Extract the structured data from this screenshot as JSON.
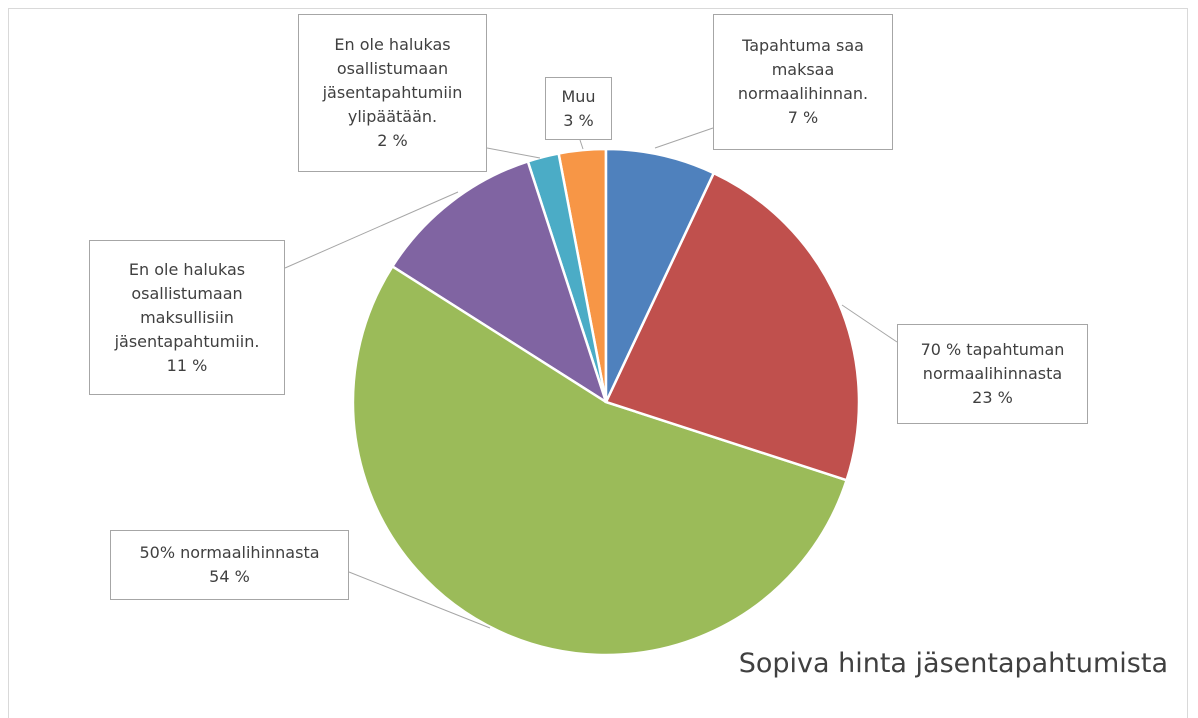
{
  "chart_data": {
    "type": "pie",
    "title": "Sopiva hinta jäsentapahtumista",
    "categories": [
      "Tapahtuma saa maksaa normaalihinnan.",
      "70 % tapahtuman normaalihinnasta",
      "50% normaalihinnasta",
      "En ole halukas osallistumaan maksullisiin jäsentapahtumiin.",
      "En ole halukas osallistumaan jäsentapahtumiin ylipäätään.",
      "Muu"
    ],
    "values": [
      7,
      23,
      54,
      11,
      2,
      3
    ],
    "value_labels": [
      "7 %",
      "23 %",
      "54 %",
      "11 %",
      "2 %",
      "3 %"
    ],
    "colors": [
      "#4f81bd",
      "#c0504d",
      "#9bbb59",
      "#8064a2",
      "#4bacc6",
      "#f79646"
    ]
  }
}
